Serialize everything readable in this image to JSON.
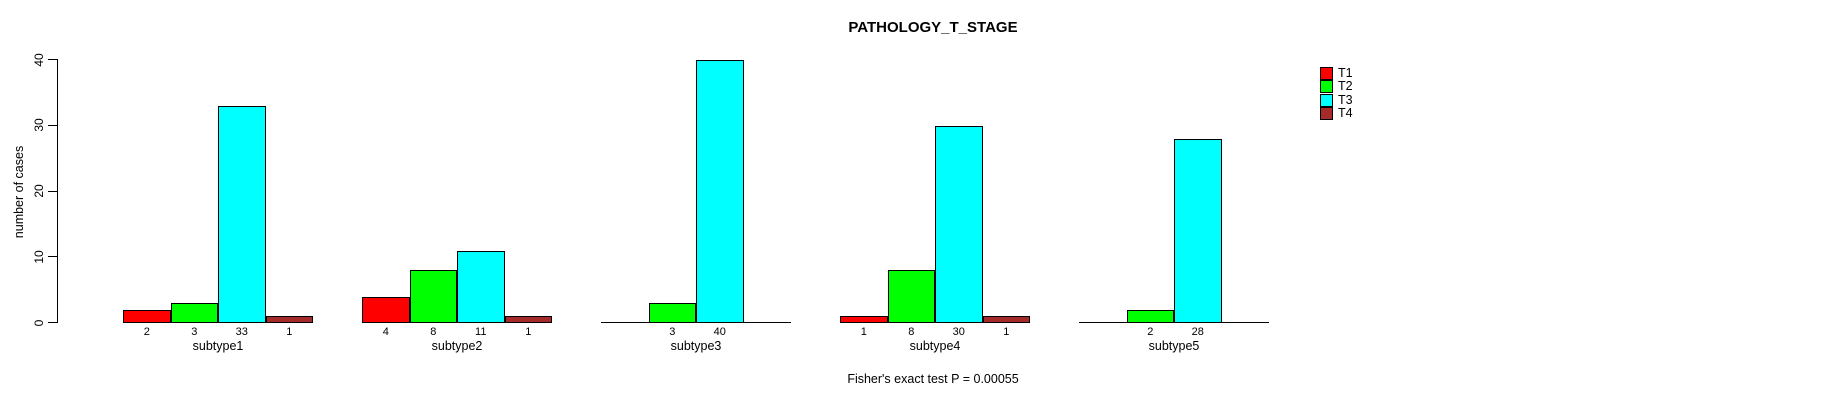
{
  "header": {
    "title": "PATHOLOGY_T_STAGE"
  },
  "footer": {
    "annotation": "Fisher's exact test P = 0.00055"
  },
  "chart_data": {
    "type": "bar",
    "title": "PATHOLOGY_T_STAGE",
    "xlabel": "",
    "ylabel": "number of cases",
    "ylim": [
      0,
      40
    ],
    "yticks": [
      0,
      10,
      20,
      30,
      40
    ],
    "grid": false,
    "legend_position": "top-right-outside-plot",
    "bar_value_labels_shown": true,
    "categories": [
      "subtype1",
      "subtype2",
      "subtype3",
      "subtype4",
      "subtype5"
    ],
    "series": [
      {
        "name": "T1",
        "color": "#ff0000",
        "values": [
          2,
          4,
          0,
          1,
          0
        ]
      },
      {
        "name": "T2",
        "color": "#00ff00",
        "values": [
          3,
          8,
          3,
          8,
          2
        ]
      },
      {
        "name": "T3",
        "color": "#00ffff",
        "values": [
          33,
          11,
          40,
          30,
          28
        ]
      },
      {
        "name": "T4",
        "color": "#a52a2a",
        "values": [
          1,
          1,
          0,
          1,
          0
        ]
      }
    ],
    "annotation": "Fisher's exact test P = 0.00055",
    "colors": {
      "background": "#ffffff",
      "axis": "#000000",
      "bar_border": "#000000",
      "text": "#000000"
    }
  }
}
